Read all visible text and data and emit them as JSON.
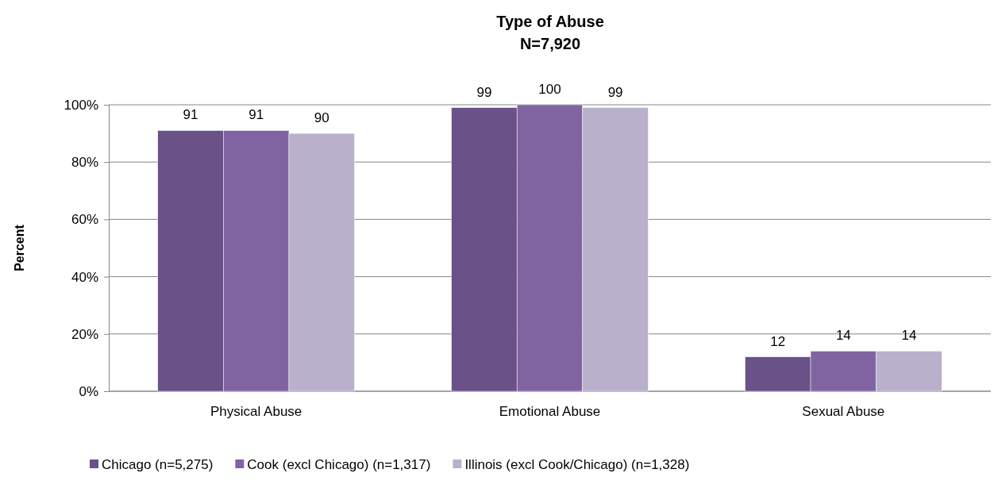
{
  "chart_data": {
    "type": "bar",
    "title": "Type of Abuse",
    "subtitle": "N=7,920",
    "ylabel": "Percent",
    "categories": [
      "Physical Abuse",
      "Emotional Abuse",
      "Sexual Abuse"
    ],
    "series": [
      {
        "name": "Chicago (n=5,275)",
        "color": "#6a5187",
        "values": [
          91,
          99,
          12
        ]
      },
      {
        "name": "Cook (excl Chicago) (n=1,317)",
        "color": "#8064a2",
        "values": [
          91,
          100,
          14
        ]
      },
      {
        "name": "Illinois (excl Cook/Chicago) (n=1,328)",
        "color": "#b9b0cc",
        "values": [
          90,
          99,
          14
        ]
      }
    ],
    "ylim": [
      0,
      100
    ],
    "yticks": [
      {
        "value": 0,
        "label": "0%"
      },
      {
        "value": 20,
        "label": "20%"
      },
      {
        "value": 40,
        "label": "40%"
      },
      {
        "value": 60,
        "label": "60%"
      },
      {
        "value": 80,
        "label": "80%"
      },
      {
        "value": 100,
        "label": "100%"
      }
    ],
    "grid": "y",
    "legend": "bottom",
    "data_labels": true
  }
}
